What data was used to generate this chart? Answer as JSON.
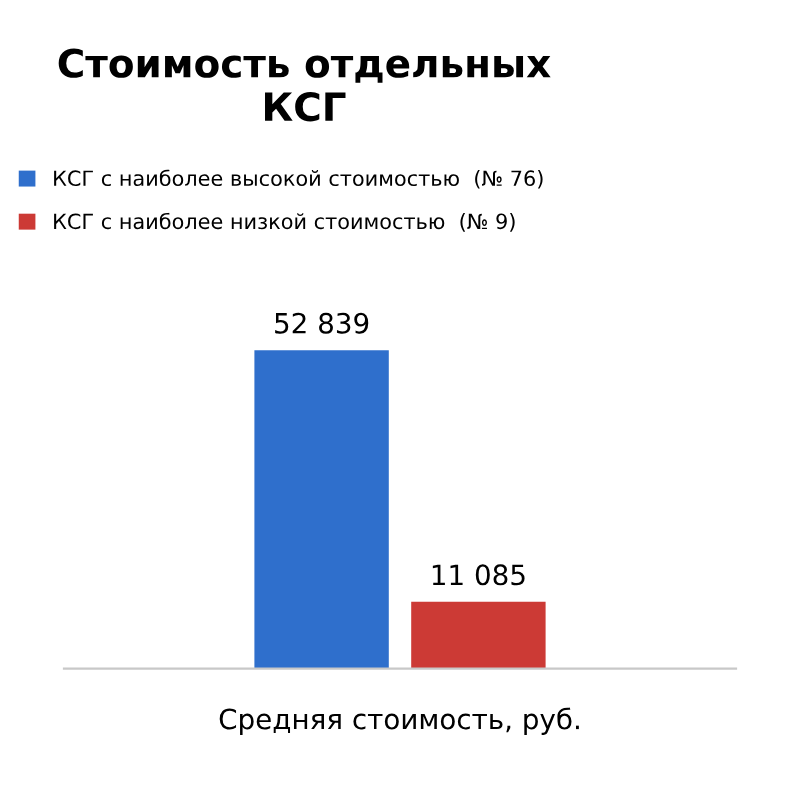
{
  "chart_data": {
    "type": "bar",
    "title": "Стоимость отдельных\nКСГ",
    "categories": [
      null
    ],
    "xlabel": "Средняя стоимость, руб.",
    "series": [
      {
        "name": "КСГ с наиболее высокой стоимостью  (№ 76)",
        "color": "#2f6fcc",
        "values": [
          52839
        ],
        "value_labels": [
          "52 839"
        ]
      },
      {
        "name": "КСГ с наиболее низкой стоимостью  (№ 9)",
        "color": "#cc3a35",
        "values": [
          11085
        ],
        "value_labels": [
          "11 085"
        ]
      }
    ],
    "legend": "top",
    "grid": false
  }
}
